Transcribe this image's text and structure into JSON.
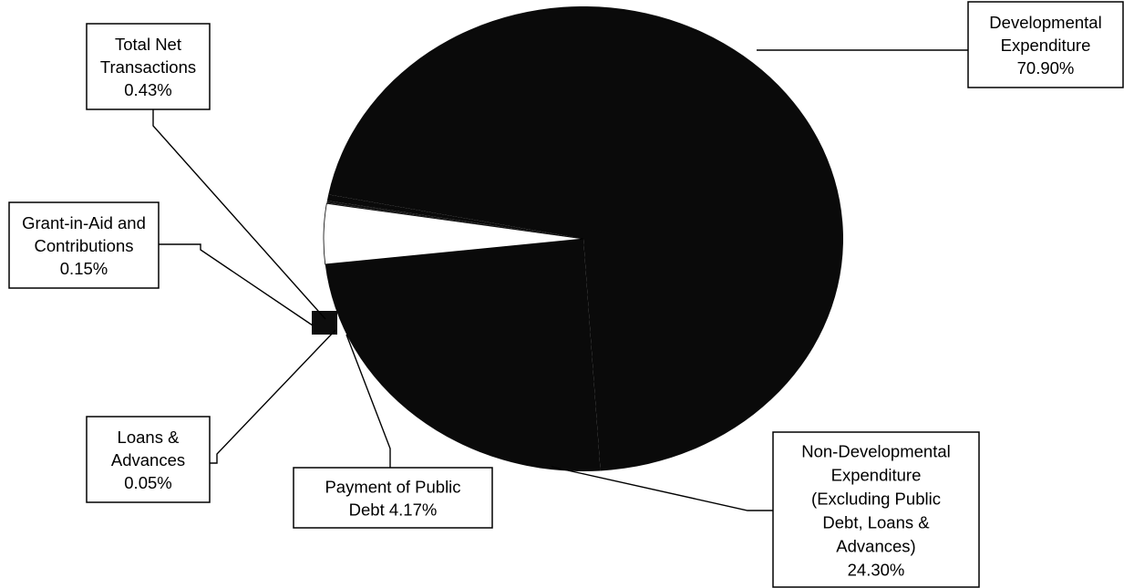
{
  "chart_data": {
    "type": "pie",
    "title": "",
    "colors": {
      "developmental": "#0a0a0a",
      "non_developmental": "#0a0a0a",
      "payment_of_public_debt": "#ffffff",
      "loans_and_advances": "#1a1a1a",
      "grant_in_aid": "#111111",
      "total_net_transactions": "#0a0a0a"
    },
    "slices": [
      {
        "key": "developmental",
        "value": 70.9,
        "label_lines": [
          "Developmental",
          "Expenditure",
          "70.90%"
        ]
      },
      {
        "key": "total_net_transactions",
        "value": 0.43,
        "label_lines": [
          "Total Net",
          "Transactions",
          "0.43%"
        ]
      },
      {
        "key": "grant_in_aid",
        "value": 0.15,
        "label_lines": [
          "Grant-in-Aid and",
          "Contributions",
          "0.15%"
        ]
      },
      {
        "key": "loans_and_advances",
        "value": 0.05,
        "label_lines": [
          "Loans &",
          "Advances",
          "0.05%"
        ]
      },
      {
        "key": "payment_of_public_debt",
        "value": 4.17,
        "label_lines": [
          "Payment of Public",
          "Debt 4.17%"
        ]
      },
      {
        "key": "non_developmental",
        "value": 24.3,
        "label_lines": [
          "Non-Developmental",
          "Expenditure",
          "(Excluding Public",
          "Debt, Loans &",
          "Advances)",
          "24.30%"
        ]
      }
    ]
  }
}
